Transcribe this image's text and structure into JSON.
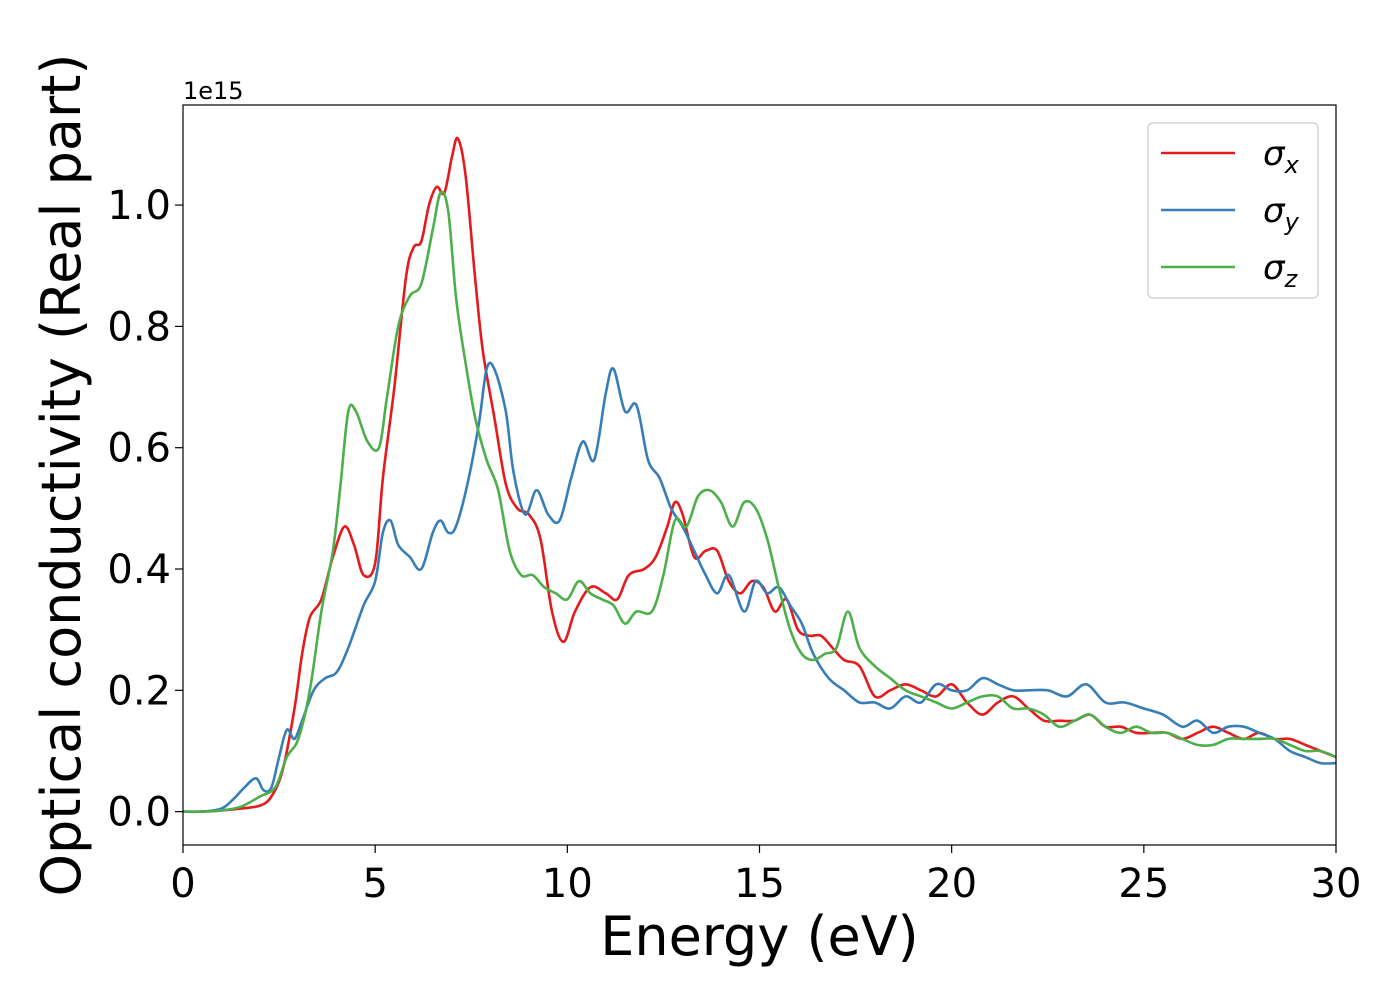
{
  "chart_data": {
    "type": "line",
    "title": "",
    "xlabel": "Energy (eV)",
    "ylabel": "Optical conductivity (Real part)",
    "y_offset_text": "1e15",
    "y_multiplier": 1000000000000000.0,
    "xlim": [
      0,
      30
    ],
    "ylim": [
      -0.055,
      1.165
    ],
    "x_ticks": [
      0,
      5,
      10,
      15,
      20,
      25,
      30
    ],
    "x_tick_labels": [
      "0",
      "5",
      "10",
      "15",
      "20",
      "25",
      "30"
    ],
    "y_ticks": [
      0.0,
      0.2,
      0.4,
      0.6,
      0.8,
      1.0
    ],
    "y_tick_labels": [
      "0.0",
      "0.2",
      "0.4",
      "0.6",
      "0.8",
      "1.0"
    ],
    "grid": false,
    "legend_position": "top-right",
    "series": [
      {
        "name": "σx",
        "name_base": "σ",
        "name_sub": "x",
        "color": "#e41a1c",
        "points": [
          [
            0,
            0
          ],
          [
            0.5,
            0
          ],
          [
            1,
            0.002
          ],
          [
            1.5,
            0.005
          ],
          [
            2,
            0.01
          ],
          [
            2.3,
            0.025
          ],
          [
            2.6,
            0.07
          ],
          [
            2.9,
            0.17
          ],
          [
            3.1,
            0.26
          ],
          [
            3.3,
            0.32
          ],
          [
            3.6,
            0.35
          ],
          [
            3.9,
            0.42
          ],
          [
            4.2,
            0.47
          ],
          [
            4.45,
            0.44
          ],
          [
            4.7,
            0.39
          ],
          [
            5,
            0.41
          ],
          [
            5.2,
            0.55
          ],
          [
            5.5,
            0.7
          ],
          [
            5.8,
            0.88
          ],
          [
            6,
            0.93
          ],
          [
            6.2,
            0.94
          ],
          [
            6.4,
            1.0
          ],
          [
            6.6,
            1.03
          ],
          [
            6.8,
            1.02
          ],
          [
            7,
            1.08
          ],
          [
            7.15,
            1.11
          ],
          [
            7.35,
            1.05
          ],
          [
            7.6,
            0.88
          ],
          [
            7.8,
            0.76
          ],
          [
            8.1,
            0.65
          ],
          [
            8.4,
            0.54
          ],
          [
            8.7,
            0.5
          ],
          [
            9,
            0.49
          ],
          [
            9.3,
            0.45
          ],
          [
            9.6,
            0.33
          ],
          [
            9.9,
            0.28
          ],
          [
            10.2,
            0.33
          ],
          [
            10.6,
            0.37
          ],
          [
            11,
            0.36
          ],
          [
            11.3,
            0.35
          ],
          [
            11.6,
            0.39
          ],
          [
            12,
            0.4
          ],
          [
            12.3,
            0.42
          ],
          [
            12.6,
            0.47
          ],
          [
            12.8,
            0.51
          ],
          [
            13,
            0.49
          ],
          [
            13.3,
            0.42
          ],
          [
            13.6,
            0.43
          ],
          [
            13.9,
            0.43
          ],
          [
            14.2,
            0.38
          ],
          [
            14.5,
            0.36
          ],
          [
            14.8,
            0.38
          ],
          [
            15.1,
            0.37
          ],
          [
            15.4,
            0.33
          ],
          [
            15.7,
            0.35
          ],
          [
            16,
            0.3
          ],
          [
            16.3,
            0.29
          ],
          [
            16.6,
            0.29
          ],
          [
            16.9,
            0.27
          ],
          [
            17.2,
            0.25
          ],
          [
            17.6,
            0.24
          ],
          [
            18,
            0.19
          ],
          [
            18.4,
            0.2
          ],
          [
            18.8,
            0.21
          ],
          [
            19.2,
            0.2
          ],
          [
            19.6,
            0.19
          ],
          [
            20,
            0.21
          ],
          [
            20.4,
            0.18
          ],
          [
            20.8,
            0.16
          ],
          [
            21.2,
            0.18
          ],
          [
            21.6,
            0.19
          ],
          [
            22,
            0.17
          ],
          [
            22.4,
            0.15
          ],
          [
            22.8,
            0.15
          ],
          [
            23.2,
            0.15
          ],
          [
            23.6,
            0.16
          ],
          [
            24,
            0.14
          ],
          [
            24.4,
            0.14
          ],
          [
            24.8,
            0.13
          ],
          [
            25.2,
            0.13
          ],
          [
            25.6,
            0.13
          ],
          [
            26,
            0.12
          ],
          [
            26.4,
            0.13
          ],
          [
            26.8,
            0.14
          ],
          [
            27.2,
            0.13
          ],
          [
            27.6,
            0.12
          ],
          [
            28,
            0.13
          ],
          [
            28.4,
            0.12
          ],
          [
            28.8,
            0.12
          ],
          [
            29.2,
            0.11
          ],
          [
            29.6,
            0.1
          ],
          [
            30,
            0.09
          ]
        ]
      },
      {
        "name": "σy",
        "name_base": "σ",
        "name_sub": "y",
        "color": "#377eb8",
        "points": [
          [
            0,
            0
          ],
          [
            0.5,
            0
          ],
          [
            1,
            0.005
          ],
          [
            1.3,
            0.02
          ],
          [
            1.6,
            0.04
          ],
          [
            1.9,
            0.055
          ],
          [
            2.1,
            0.035
          ],
          [
            2.3,
            0.04
          ],
          [
            2.5,
            0.09
          ],
          [
            2.7,
            0.135
          ],
          [
            2.9,
            0.12
          ],
          [
            3.1,
            0.15
          ],
          [
            3.4,
            0.2
          ],
          [
            3.7,
            0.22
          ],
          [
            4,
            0.23
          ],
          [
            4.3,
            0.27
          ],
          [
            4.7,
            0.34
          ],
          [
            5,
            0.38
          ],
          [
            5.2,
            0.46
          ],
          [
            5.4,
            0.48
          ],
          [
            5.6,
            0.44
          ],
          [
            5.9,
            0.42
          ],
          [
            6.2,
            0.4
          ],
          [
            6.5,
            0.46
          ],
          [
            6.7,
            0.48
          ],
          [
            6.9,
            0.46
          ],
          [
            7.1,
            0.47
          ],
          [
            7.4,
            0.54
          ],
          [
            7.7,
            0.64
          ],
          [
            7.9,
            0.73
          ],
          [
            8.1,
            0.73
          ],
          [
            8.4,
            0.66
          ],
          [
            8.6,
            0.56
          ],
          [
            8.9,
            0.49
          ],
          [
            9.2,
            0.53
          ],
          [
            9.5,
            0.49
          ],
          [
            9.8,
            0.48
          ],
          [
            10.1,
            0.55
          ],
          [
            10.4,
            0.61
          ],
          [
            10.7,
            0.58
          ],
          [
            11,
            0.69
          ],
          [
            11.2,
            0.73
          ],
          [
            11.5,
            0.66
          ],
          [
            11.8,
            0.67
          ],
          [
            12.1,
            0.58
          ],
          [
            12.4,
            0.55
          ],
          [
            12.7,
            0.5
          ],
          [
            13,
            0.47
          ],
          [
            13.3,
            0.43
          ],
          [
            13.6,
            0.39
          ],
          [
            13.9,
            0.36
          ],
          [
            14.2,
            0.39
          ],
          [
            14.6,
            0.33
          ],
          [
            14.9,
            0.38
          ],
          [
            15.2,
            0.36
          ],
          [
            15.5,
            0.37
          ],
          [
            15.8,
            0.34
          ],
          [
            16.1,
            0.31
          ],
          [
            16.4,
            0.26
          ],
          [
            16.8,
            0.22
          ],
          [
            17.2,
            0.2
          ],
          [
            17.6,
            0.18
          ],
          [
            18,
            0.18
          ],
          [
            18.4,
            0.17
          ],
          [
            18.8,
            0.19
          ],
          [
            19.2,
            0.18
          ],
          [
            19.6,
            0.21
          ],
          [
            20,
            0.2
          ],
          [
            20.4,
            0.2
          ],
          [
            20.8,
            0.22
          ],
          [
            21.2,
            0.21
          ],
          [
            21.6,
            0.2
          ],
          [
            22,
            0.2
          ],
          [
            22.5,
            0.2
          ],
          [
            23,
            0.19
          ],
          [
            23.5,
            0.21
          ],
          [
            24,
            0.18
          ],
          [
            24.5,
            0.18
          ],
          [
            25,
            0.17
          ],
          [
            25.5,
            0.16
          ],
          [
            26,
            0.14
          ],
          [
            26.4,
            0.15
          ],
          [
            26.8,
            0.13
          ],
          [
            27.2,
            0.14
          ],
          [
            27.6,
            0.14
          ],
          [
            28,
            0.13
          ],
          [
            28.4,
            0.12
          ],
          [
            28.8,
            0.1
          ],
          [
            29.2,
            0.09
          ],
          [
            29.6,
            0.08
          ],
          [
            30,
            0.08
          ]
        ]
      },
      {
        "name": "σz",
        "name_base": "σ",
        "name_sub": "z",
        "color": "#4daf4a",
        "points": [
          [
            0,
            0
          ],
          [
            0.5,
            0
          ],
          [
            1,
            0.002
          ],
          [
            1.5,
            0.008
          ],
          [
            2,
            0.025
          ],
          [
            2.4,
            0.04
          ],
          [
            2.7,
            0.09
          ],
          [
            3,
            0.12
          ],
          [
            3.3,
            0.2
          ],
          [
            3.6,
            0.33
          ],
          [
            3.9,
            0.43
          ],
          [
            4.1,
            0.54
          ],
          [
            4.3,
            0.66
          ],
          [
            4.5,
            0.66
          ],
          [
            4.8,
            0.61
          ],
          [
            5.1,
            0.6
          ],
          [
            5.3,
            0.68
          ],
          [
            5.6,
            0.8
          ],
          [
            5.9,
            0.85
          ],
          [
            6.2,
            0.87
          ],
          [
            6.5,
            0.96
          ],
          [
            6.7,
            1.02
          ],
          [
            6.9,
            0.99
          ],
          [
            7.1,
            0.85
          ],
          [
            7.3,
            0.76
          ],
          [
            7.6,
            0.65
          ],
          [
            7.9,
            0.58
          ],
          [
            8.2,
            0.53
          ],
          [
            8.5,
            0.43
          ],
          [
            8.8,
            0.39
          ],
          [
            9.1,
            0.39
          ],
          [
            9.4,
            0.37
          ],
          [
            9.7,
            0.36
          ],
          [
            10,
            0.35
          ],
          [
            10.3,
            0.38
          ],
          [
            10.6,
            0.36
          ],
          [
            10.9,
            0.35
          ],
          [
            11.2,
            0.34
          ],
          [
            11.5,
            0.31
          ],
          [
            11.8,
            0.33
          ],
          [
            12.2,
            0.33
          ],
          [
            12.5,
            0.39
          ],
          [
            12.8,
            0.48
          ],
          [
            13.1,
            0.47
          ],
          [
            13.4,
            0.52
          ],
          [
            13.7,
            0.53
          ],
          [
            14,
            0.51
          ],
          [
            14.3,
            0.47
          ],
          [
            14.6,
            0.51
          ],
          [
            14.9,
            0.5
          ],
          [
            15.2,
            0.45
          ],
          [
            15.5,
            0.37
          ],
          [
            15.8,
            0.3
          ],
          [
            16.1,
            0.26
          ],
          [
            16.4,
            0.25
          ],
          [
            16.7,
            0.26
          ],
          [
            17,
            0.27
          ],
          [
            17.3,
            0.33
          ],
          [
            17.6,
            0.27
          ],
          [
            18,
            0.24
          ],
          [
            18.4,
            0.22
          ],
          [
            18.8,
            0.2
          ],
          [
            19.2,
            0.19
          ],
          [
            19.6,
            0.18
          ],
          [
            20,
            0.17
          ],
          [
            20.4,
            0.18
          ],
          [
            20.8,
            0.19
          ],
          [
            21.2,
            0.19
          ],
          [
            21.6,
            0.17
          ],
          [
            22,
            0.17
          ],
          [
            22.4,
            0.16
          ],
          [
            22.8,
            0.14
          ],
          [
            23.2,
            0.15
          ],
          [
            23.6,
            0.16
          ],
          [
            24,
            0.14
          ],
          [
            24.4,
            0.13
          ],
          [
            24.8,
            0.14
          ],
          [
            25.2,
            0.13
          ],
          [
            25.6,
            0.13
          ],
          [
            26,
            0.12
          ],
          [
            26.4,
            0.11
          ],
          [
            26.8,
            0.11
          ],
          [
            27.2,
            0.12
          ],
          [
            27.6,
            0.12
          ],
          [
            28,
            0.12
          ],
          [
            28.4,
            0.12
          ],
          [
            28.8,
            0.11
          ],
          [
            29.2,
            0.1
          ],
          [
            29.6,
            0.1
          ],
          [
            30,
            0.09
          ]
        ]
      }
    ]
  }
}
